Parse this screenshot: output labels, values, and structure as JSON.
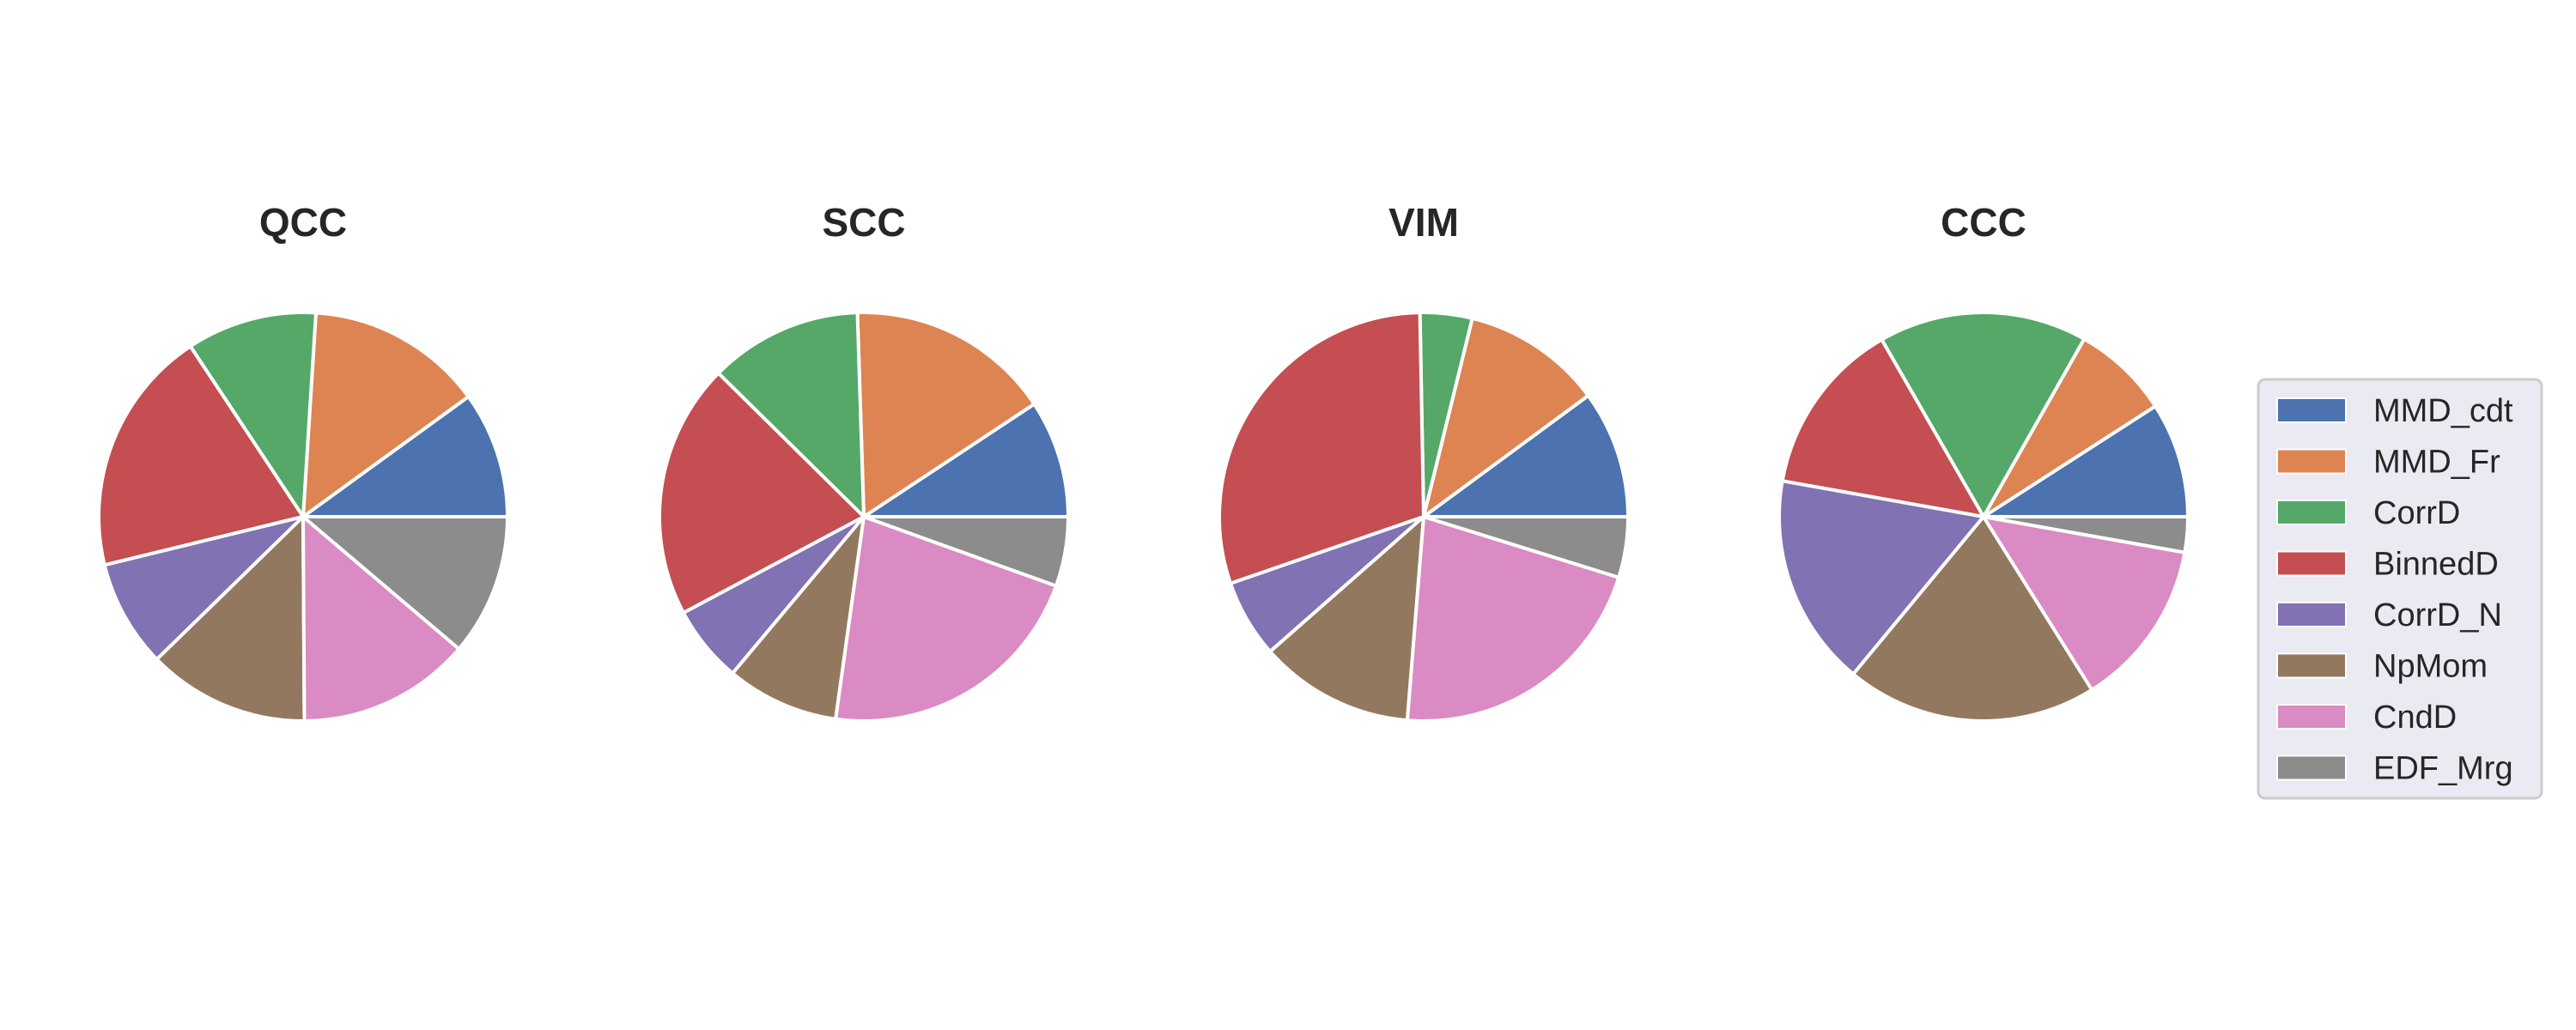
{
  "chart_data": {
    "type": "pie",
    "categories": [
      "MMD_cdt",
      "MMD_Fr",
      "CorrD",
      "BinnedD",
      "CorrD_N",
      "NpMom",
      "CndD",
      "EDF_Mrg"
    ],
    "colors": [
      "#4C72B0",
      "#DD8452",
      "#55A868",
      "#C44E52",
      "#8172B3",
      "#937860",
      "#DA8BC3",
      "#8C8C8C"
    ],
    "legend": {
      "position": "right",
      "labels": [
        "MMD_cdt",
        "MMD_Fr",
        "CorrD",
        "BinnedD",
        "CorrD_N",
        "NpMom",
        "CndD",
        "EDF_Mrg"
      ]
    },
    "start_angle_deg": 0,
    "direction": "counterclockwise",
    "pies": [
      {
        "title": "QCC",
        "values": [
          10.0,
          14.0,
          10.3,
          19.5,
          8.5,
          12.8,
          13.7,
          11.2
        ]
      },
      {
        "title": "SCC",
        "values": [
          9.3,
          16.2,
          12.1,
          20.2,
          6.1,
          8.9,
          21.7,
          5.5
        ]
      },
      {
        "title": "VIM",
        "values": [
          10.3,
          11.3,
          4.2,
          30.6,
          6.3,
          12.5,
          21.9,
          4.9
        ]
      },
      {
        "title": "CCC",
        "values": [
          9.1,
          7.7,
          16.5,
          13.9,
          16.8,
          19.9,
          13.3,
          2.8
        ]
      }
    ]
  }
}
